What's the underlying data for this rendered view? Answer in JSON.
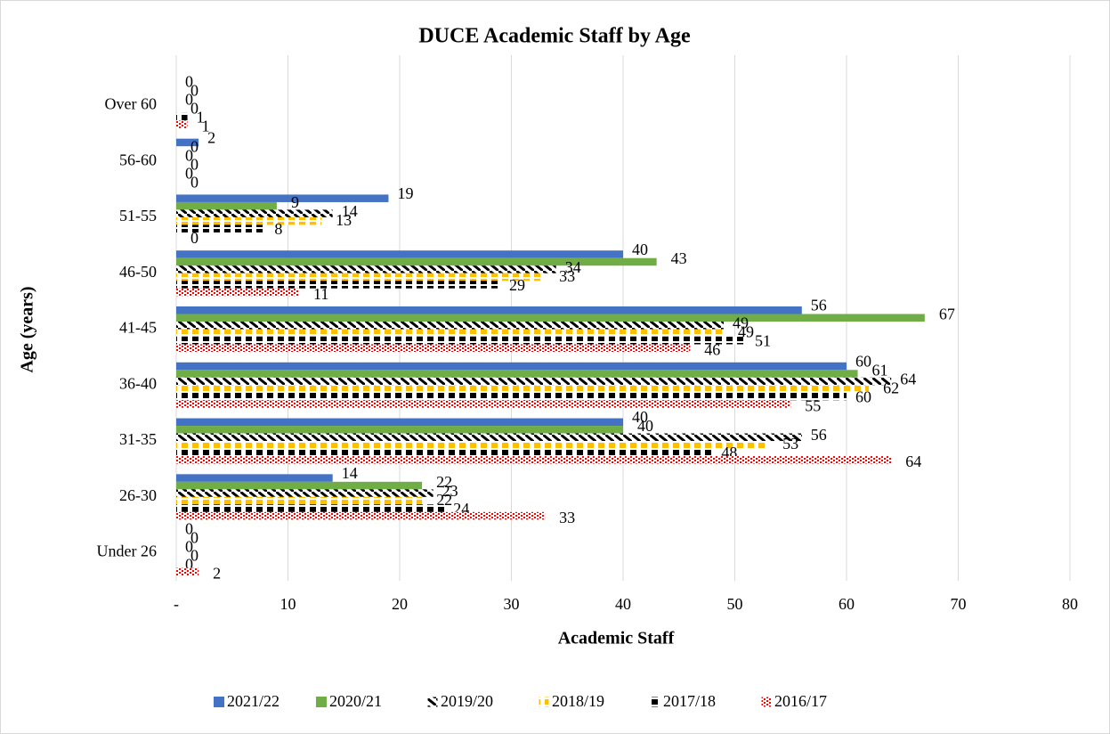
{
  "chart_data": {
    "type": "hbar",
    "title": "DUCE Academic Staff by Age",
    "xlabel": "Academic Staff",
    "ylabel": "Age (years)",
    "categories": [
      "Over 60",
      "56-60",
      "51-55",
      "46-50",
      "41-45",
      "36-40",
      "31-35",
      "26-30",
      "Under 26"
    ],
    "series": [
      {
        "name": "2021/22",
        "color": "#4472c4",
        "pattern": "solid",
        "values": [
          0,
          2,
          19,
          40,
          56,
          60,
          40,
          14,
          0
        ]
      },
      {
        "name": "2020/21",
        "color": "#70ad47",
        "pattern": "solid",
        "values": [
          0,
          0,
          9,
          43,
          67,
          61,
          40,
          22,
          0
        ]
      },
      {
        "name": "2019/20",
        "color": "#000000",
        "pattern": "diagonal",
        "values": [
          0,
          0,
          14,
          34,
          49,
          64,
          56,
          23,
          0
        ]
      },
      {
        "name": "2018/19",
        "color": "#ffc000",
        "pattern": "dash",
        "values": [
          0,
          0,
          13,
          33,
          49,
          62,
          53,
          22,
          0
        ]
      },
      {
        "name": "2017/18",
        "color": "#000000",
        "pattern": "dash",
        "values": [
          1,
          0,
          8,
          29,
          51,
          60,
          48,
          24,
          0
        ]
      },
      {
        "name": "2016/17",
        "color": "#ff0000",
        "pattern": "dots",
        "values": [
          1,
          0,
          0,
          11,
          46,
          55,
          64,
          33,
          2
        ]
      }
    ],
    "xlim": [
      0,
      80
    ],
    "xticks": [
      {
        "value": 0,
        "label": "-"
      },
      10,
      20,
      30,
      40,
      50,
      60,
      70,
      80
    ],
    "grid": true,
    "legend": "bottom"
  }
}
